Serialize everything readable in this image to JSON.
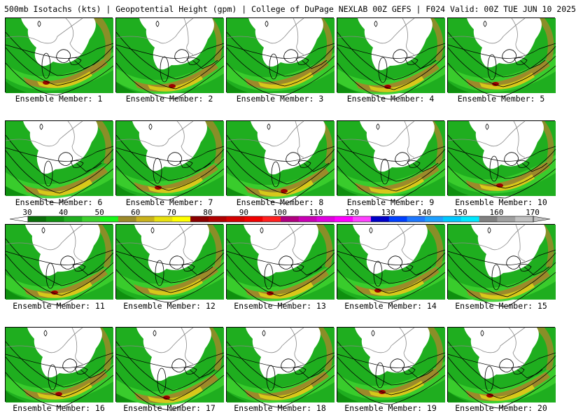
{
  "header": {
    "title": "500mb Isotachs (kts) | Geopotential Height (gpm) | College of DuPage NEXLAB   00Z GEFS | F024 Valid: 00Z TUE JUN 10 2025"
  },
  "colorbar": {
    "labels": [
      "30",
      "40",
      "50",
      "60",
      "70",
      "80",
      "90",
      "100",
      "110",
      "120",
      "130",
      "140",
      "150",
      "160",
      "170"
    ],
    "colors": [
      "#0a6e0a",
      "#0f8f0f",
      "#1fae1f",
      "#3ccf2e",
      "#17f717",
      "#9c8a2a",
      "#c9b21c",
      "#e8e010",
      "#ffff00",
      "#8b0000",
      "#b00000",
      "#d40000",
      "#f00000",
      "#ff2020",
      "#b00080",
      "#c800b4",
      "#e000e0",
      "#ff00ff",
      "#ff40ff",
      "#0000c8",
      "#0040ff",
      "#1e78ff",
      "#1ea0ff",
      "#00c8ff",
      "#00e8ff",
      "#808080",
      "#a0a0a0",
      "#c0c0c0"
    ]
  },
  "palette": {
    "land": "#ffffff",
    "wind_light": "#0f8f0f",
    "wind_mid": "#1fae1f",
    "wind_bright": "#3ccf2e",
    "wind_olive": "#9c8a2a",
    "wind_yellow": "#d8c81a",
    "wind_max": "#9b0000"
  },
  "members": [
    {
      "label": "Ensemble Member: 1"
    },
    {
      "label": "Ensemble Member: 2"
    },
    {
      "label": "Ensemble Member: 3"
    },
    {
      "label": "Ensemble Member: 4"
    },
    {
      "label": "Ensemble Member: 5"
    },
    {
      "label": "Ensemble Member: 6"
    },
    {
      "label": "Ensemble Member: 7"
    },
    {
      "label": "Ensemble Member: 8"
    },
    {
      "label": "Ensemble Member: 9"
    },
    {
      "label": "Ensemble Member: 10"
    },
    {
      "label": "Ensemble Member: 11"
    },
    {
      "label": "Ensemble Member: 12"
    },
    {
      "label": "Ensemble Member: 13"
    },
    {
      "label": "Ensemble Member: 14"
    },
    {
      "label": "Ensemble Member: 15"
    },
    {
      "label": "Ensemble Member: 16"
    },
    {
      "label": "Ensemble Member: 17"
    },
    {
      "label": "Ensemble Member: 18"
    },
    {
      "label": "Ensemble Member: 19"
    },
    {
      "label": "Ensemble Member: 20"
    }
  ]
}
